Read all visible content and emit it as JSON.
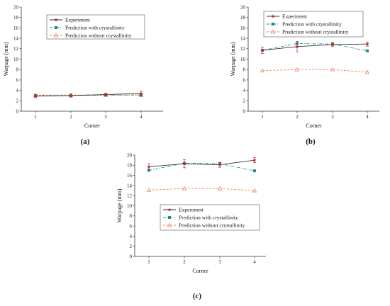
{
  "chart_data": [
    {
      "type": "line",
      "panel_label": "(a)",
      "xlabel": "Corner",
      "ylabel": "Warpage (mm)",
      "categories": [
        "1",
        "2",
        "3",
        "4"
      ],
      "ylim": [
        0,
        20
      ],
      "yticks": [
        "0",
        "2",
        "4",
        "6",
        "8",
        "10",
        "12",
        "14",
        "16",
        "18",
        "20"
      ],
      "legend_position": "top-left",
      "series": [
        {
          "name": "Experiment",
          "values": [
            2.9,
            3.0,
            3.2,
            3.4
          ],
          "errors": [
            0.3,
            0.3,
            0.3,
            0.5
          ],
          "color": "#c0281e",
          "marker": "star",
          "dash": "solid"
        },
        {
          "name": "Prediction with crystallinity",
          "values": [
            3.0,
            3.0,
            3.1,
            3.1
          ],
          "color": "#1e8f7a",
          "marker": "square",
          "dash": "dashdot"
        },
        {
          "name": "Prediction without crystallinity",
          "values": [
            3.1,
            3.1,
            3.1,
            3.1
          ],
          "color": "#e8855c",
          "marker": "triangle",
          "dash": "dashed"
        }
      ]
    },
    {
      "type": "line",
      "panel_label": "(b)",
      "xlabel": "Corner",
      "ylabel": "Warpage (mm)",
      "categories": [
        "1",
        "2",
        "3",
        "4"
      ],
      "ylim": [
        0,
        20
      ],
      "yticks": [
        "0",
        "2",
        "4",
        "6",
        "8",
        "10",
        "12",
        "14",
        "16",
        "18",
        "20"
      ],
      "legend_position": "top-left",
      "series": [
        {
          "name": "Experiment",
          "values": [
            11.7,
            12.4,
            12.8,
            12.9
          ],
          "errors": [
            0.6,
            1.0,
            0.4,
            0.4
          ],
          "color": "#c0281e",
          "marker": "star",
          "dash": "solid"
        },
        {
          "name": "Prediction with crystallinity",
          "values": [
            11.7,
            13.0,
            12.9,
            11.6
          ],
          "color": "#1e8f7a",
          "marker": "square",
          "dash": "dashdot"
        },
        {
          "name": "Prediction without crystallinity",
          "values": [
            7.8,
            8.0,
            8.0,
            7.5
          ],
          "color": "#e8855c",
          "marker": "triangle",
          "dash": "dashed"
        }
      ]
    },
    {
      "type": "line",
      "panel_label": "(c)",
      "xlabel": "Corner",
      "ylabel": "Warpage (mm)",
      "categories": [
        "1",
        "2",
        "3",
        "4"
      ],
      "ylim": [
        0,
        20
      ],
      "yticks": [
        "0",
        "2",
        "4",
        "6",
        "8",
        "10",
        "12",
        "14",
        "16",
        "18",
        "20"
      ],
      "legend_position": "center-right",
      "series": [
        {
          "name": "Experiment",
          "values": [
            17.7,
            18.3,
            18.1,
            19.0
          ],
          "errors": [
            0.6,
            0.8,
            0.5,
            0.5
          ],
          "color": "#c0281e",
          "marker": "star",
          "dash": "solid"
        },
        {
          "name": "Prediction with crystallinity",
          "values": [
            17.0,
            18.4,
            18.3,
            16.9
          ],
          "color": "#1e8f7a",
          "marker": "square",
          "dash": "dashdot"
        },
        {
          "name": "Prediction without crystallinity",
          "values": [
            13.1,
            13.4,
            13.4,
            13.0
          ],
          "color": "#e8855c",
          "marker": "triangle",
          "dash": "dashed"
        }
      ]
    }
  ]
}
